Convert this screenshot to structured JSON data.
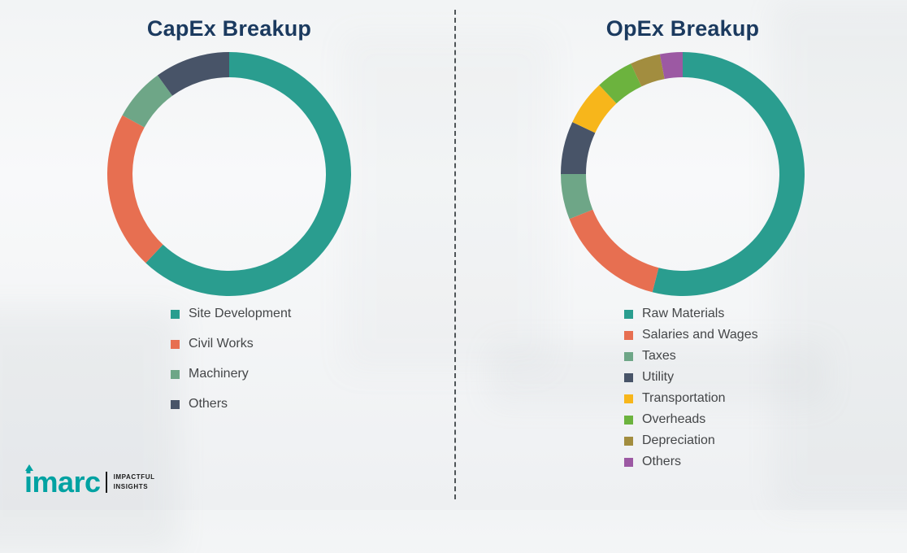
{
  "chart_data": [
    {
      "type": "pie",
      "subtype": "donut",
      "title": "CapEx Breakup",
      "labels": [
        "Site Development",
        "Civil Works",
        "Machinery",
        "Others"
      ],
      "values": [
        62,
        21,
        7,
        10
      ],
      "colors": [
        "#2a9d8f",
        "#e76f51",
        "#6ea687",
        "#485468"
      ],
      "start_angle_deg": 0,
      "direction": "clockwise",
      "legend_position": "bottom"
    },
    {
      "type": "pie",
      "subtype": "donut",
      "title": "OpEx Breakup",
      "labels": [
        "Raw Materials",
        "Salaries and Wages",
        "Taxes",
        "Utility",
        "Transportation",
        "Overheads",
        "Depreciation",
        "Others"
      ],
      "values": [
        54,
        15,
        6,
        7,
        6,
        5,
        4,
        3
      ],
      "colors": [
        "#2a9d8f",
        "#e76f51",
        "#6ea687",
        "#485468",
        "#f7b61b",
        "#6cb33e",
        "#a28d3f",
        "#9c59a3"
      ],
      "start_angle_deg": 0,
      "direction": "clockwise",
      "legend_position": "bottom"
    }
  ],
  "logo": {
    "brand": "imarc",
    "tagline_line1": "IMPACTFUL",
    "tagline_line2": "INSIGHTS"
  }
}
